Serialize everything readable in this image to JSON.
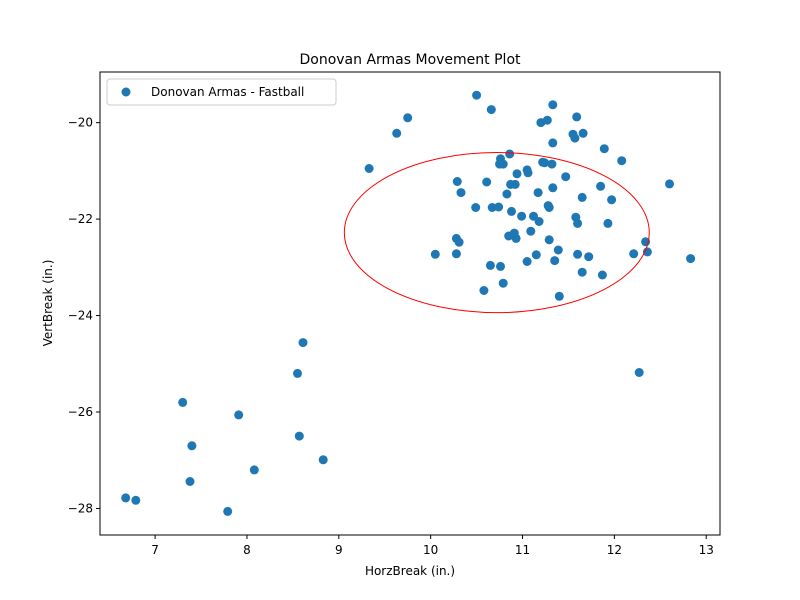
{
  "chart_data": {
    "type": "scatter",
    "title": "Donovan Armas Movement Plot",
    "xlabel": "HorzBreak (in.)",
    "ylabel": "VertBreak (in.)",
    "xlim": [
      6.4,
      13.15
    ],
    "ylim": [
      -28.55,
      -18.95
    ],
    "xticks": [
      7,
      8,
      9,
      10,
      11,
      12,
      13
    ],
    "yticks": [
      -28,
      -26,
      -24,
      -22,
      -20
    ],
    "grid": false,
    "legend": {
      "placement": "top-left",
      "entries": [
        "Donovan Armas - Fastball"
      ]
    },
    "point_color": "#1f77b4",
    "series": [
      {
        "name": "Donovan Armas - Fastball",
        "x": [
          10.5,
          10.66,
          11.33,
          11.59,
          9.75,
          9.63,
          11.2,
          11.27,
          11.55,
          11.66,
          11.57,
          11.33,
          11.89,
          10.86,
          10.76,
          10.79,
          11.24,
          11.32,
          11.22,
          12.08,
          9.33,
          11.47,
          10.75,
          10.94,
          11.06,
          11.05,
          10.29,
          10.61,
          10.87,
          10.92,
          10.33,
          10.83,
          11.17,
          11.85,
          12.6,
          11.33,
          11.65,
          11.97,
          10.49,
          10.67,
          10.74,
          11.29,
          11.28,
          10.88,
          10.99,
          11.12,
          11.58,
          11.18,
          11.6,
          11.93,
          11.09,
          10.85,
          10.93,
          10.91,
          11.29,
          10.28,
          10.31,
          11.39,
          10.05,
          10.28,
          11.15,
          12.21,
          12.36,
          12.34,
          11.6,
          11.72,
          11.35,
          12.83,
          11.05,
          10.65,
          10.76,
          11.65,
          11.87,
          10.79,
          10.58,
          11.4,
          8.61,
          8.55,
          12.27,
          7.3,
          7.91,
          8.57,
          7.4,
          8.83,
          8.08,
          6.68,
          6.79,
          7.38,
          7.79
        ],
        "y": [
          -19.43,
          -19.73,
          -19.63,
          -19.88,
          -19.9,
          -20.22,
          -20.0,
          -19.95,
          -20.24,
          -20.22,
          -20.32,
          -20.42,
          -20.54,
          -20.65,
          -20.75,
          -20.86,
          -20.83,
          -20.86,
          -20.82,
          -20.79,
          -20.95,
          -21.12,
          -20.86,
          -21.06,
          -21.04,
          -20.98,
          -21.22,
          -21.23,
          -21.28,
          -21.28,
          -21.45,
          -21.48,
          -21.45,
          -21.32,
          -21.27,
          -21.35,
          -21.55,
          -21.6,
          -21.76,
          -21.76,
          -21.75,
          -21.76,
          -21.72,
          -21.84,
          -21.94,
          -21.94,
          -21.96,
          -22.05,
          -22.09,
          -22.09,
          -22.25,
          -22.35,
          -22.4,
          -22.29,
          -22.43,
          -22.4,
          -22.48,
          -22.64,
          -22.73,
          -22.72,
          -22.74,
          -22.72,
          -22.68,
          -22.47,
          -22.73,
          -22.78,
          -22.86,
          -22.82,
          -22.88,
          -22.96,
          -22.98,
          -23.1,
          -23.16,
          -23.33,
          -23.48,
          -23.6,
          -24.56,
          -25.2,
          -25.18,
          -25.8,
          -26.06,
          -26.5,
          -26.7,
          -26.99,
          -27.2,
          -27.78,
          -27.83,
          -27.44,
          -28.06
        ]
      }
    ],
    "ellipse": {
      "cx": 10.72,
      "cy": -22.28,
      "rx": 1.66,
      "ry": 1.66,
      "color": "#ff0000"
    }
  }
}
